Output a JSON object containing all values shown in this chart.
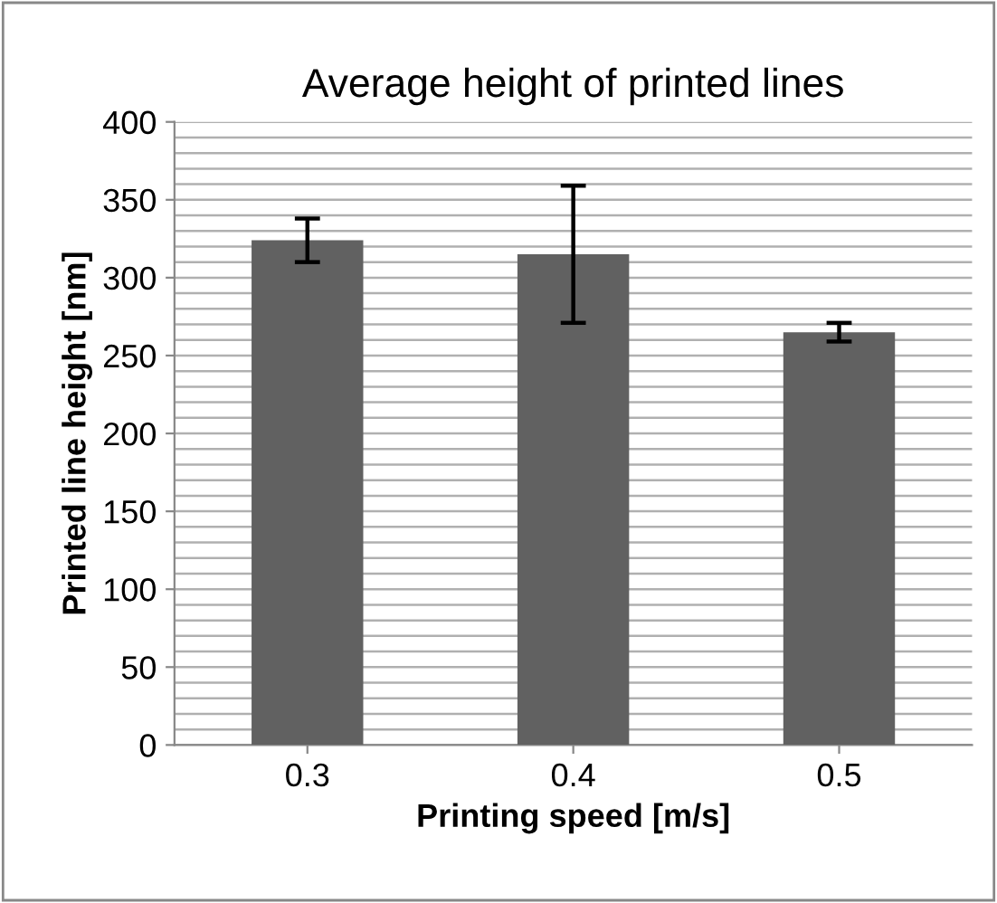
{
  "chart_data": {
    "type": "bar",
    "title": "Average height of printed lines",
    "xlabel": "Printing speed [m/s]",
    "ylabel": "Printed line height [nm]",
    "categories": [
      "0.3",
      "0.4",
      "0.5"
    ],
    "values": [
      324,
      315,
      265
    ],
    "errors": [
      14,
      44,
      6
    ],
    "color": "#616161",
    "ylim": [
      0,
      400
    ],
    "yticks": [
      0,
      {
        "value": 10,
        "label": null
      },
      {
        "value": 20,
        "label": null
      },
      {
        "value": 30,
        "label": null
      },
      {
        "value": 40,
        "label": null
      },
      50,
      {
        "value": 60,
        "label": null
      },
      {
        "value": 70,
        "label": null
      },
      {
        "value": 80,
        "label": null
      },
      {
        "value": 90,
        "label": null
      },
      100,
      {
        "value": 110,
        "label": null
      },
      {
        "value": 120,
        "label": null
      },
      {
        "value": 130,
        "label": null
      },
      {
        "value": 140,
        "label": null
      },
      150,
      {
        "value": 160,
        "label": null
      },
      {
        "value": 170,
        "label": null
      },
      {
        "value": 180,
        "label": null
      },
      {
        "value": 190,
        "label": null
      },
      200,
      {
        "value": 210,
        "label": null
      },
      {
        "value": 220,
        "label": null
      },
      {
        "value": 230,
        "label": null
      },
      {
        "value": 240,
        "label": null
      },
      250,
      {
        "value": 260,
        "label": null
      },
      {
        "value": 270,
        "label": null
      },
      {
        "value": 280,
        "label": null
      },
      {
        "value": 290,
        "label": null
      },
      300,
      {
        "value": 310,
        "label": null
      },
      {
        "value": 320,
        "label": null
      },
      {
        "value": 330,
        "label": null
      },
      {
        "value": 340,
        "label": null
      },
      350,
      {
        "value": 360,
        "label": null
      },
      {
        "value": 370,
        "label": null
      },
      {
        "value": 380,
        "label": null
      },
      {
        "value": 390,
        "label": null
      },
      400
    ],
    "grid": "y"
  }
}
